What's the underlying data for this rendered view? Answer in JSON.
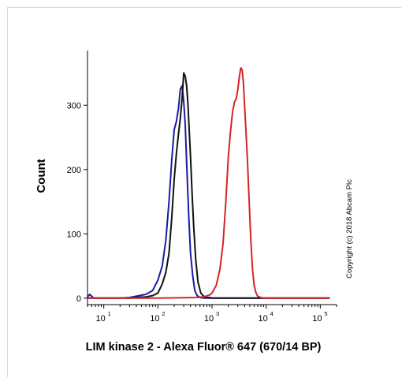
{
  "chart_data": {
    "type": "line",
    "title": "",
    "xlabel": "LIM kinase 2 - Alexa Fluor® 647 (670/14 BP)",
    "ylabel": "Count",
    "x_scale": "log",
    "xlim": [
      5,
      200000
    ],
    "ylim": [
      -10,
      385
    ],
    "yticks": [
      0,
      100,
      200,
      300
    ],
    "xticks": [
      {
        "value": 10,
        "base": "10",
        "exp": "1"
      },
      {
        "value": 100,
        "base": "10",
        "exp": "2"
      },
      {
        "value": 1000,
        "base": "10",
        "exp": "3"
      },
      {
        "value": 10000,
        "base": "10",
        "exp": "4"
      },
      {
        "value": 100000,
        "base": "10",
        "exp": "5"
      }
    ],
    "grid": false,
    "legend": "none",
    "annotation": "Copyright (c) 2018 Abcam Plc",
    "series": [
      {
        "color": "#1a1aa8",
        "x": [
          5,
          5.5,
          6.5,
          10,
          20,
          30,
          40,
          60,
          80,
          100,
          120,
          140,
          160,
          180,
          200,
          220,
          240,
          260,
          280,
          300,
          320,
          340,
          370,
          400,
          440,
          480,
          530,
          600,
          700,
          1000,
          10000,
          150000
        ],
        "y": [
          2,
          6,
          0,
          0,
          0,
          1,
          3,
          6,
          12,
          28,
          50,
          90,
          150,
          215,
          262,
          275,
          295,
          325,
          330,
          305,
          270,
          210,
          130,
          70,
          35,
          12,
          4,
          1,
          0,
          0,
          0,
          0
        ]
      },
      {
        "color": "#111111",
        "x": [
          5,
          10,
          20,
          30,
          40,
          60,
          80,
          100,
          120,
          140,
          160,
          180,
          200,
          220,
          240,
          260,
          280,
          300,
          320,
          340,
          360,
          380,
          400,
          430,
          460,
          500,
          550,
          620,
          700,
          800,
          900,
          1000,
          1100,
          10000,
          150000
        ],
        "y": [
          0,
          0,
          0,
          0,
          1,
          2,
          4,
          8,
          22,
          40,
          70,
          125,
          185,
          225,
          255,
          280,
          310,
          350,
          345,
          330,
          300,
          260,
          220,
          160,
          110,
          60,
          25,
          8,
          3,
          1,
          1,
          0,
          0,
          0,
          0
        ]
      },
      {
        "color": "#d42525",
        "x": [
          5,
          100,
          500,
          700,
          900,
          1000,
          1200,
          1400,
          1600,
          1800,
          2000,
          2200,
          2400,
          2600,
          2800,
          3000,
          3200,
          3400,
          3600,
          3800,
          4000,
          4200,
          4500,
          4800,
          5200,
          5600,
          6000,
          6500,
          7000,
          8000,
          9000,
          10000,
          150000
        ],
        "y": [
          0,
          0,
          1,
          2,
          5,
          8,
          20,
          45,
          85,
          150,
          220,
          260,
          290,
          305,
          310,
          325,
          345,
          358,
          355,
          335,
          300,
          265,
          215,
          160,
          90,
          45,
          20,
          8,
          3,
          1,
          0,
          0,
          0
        ]
      }
    ]
  }
}
